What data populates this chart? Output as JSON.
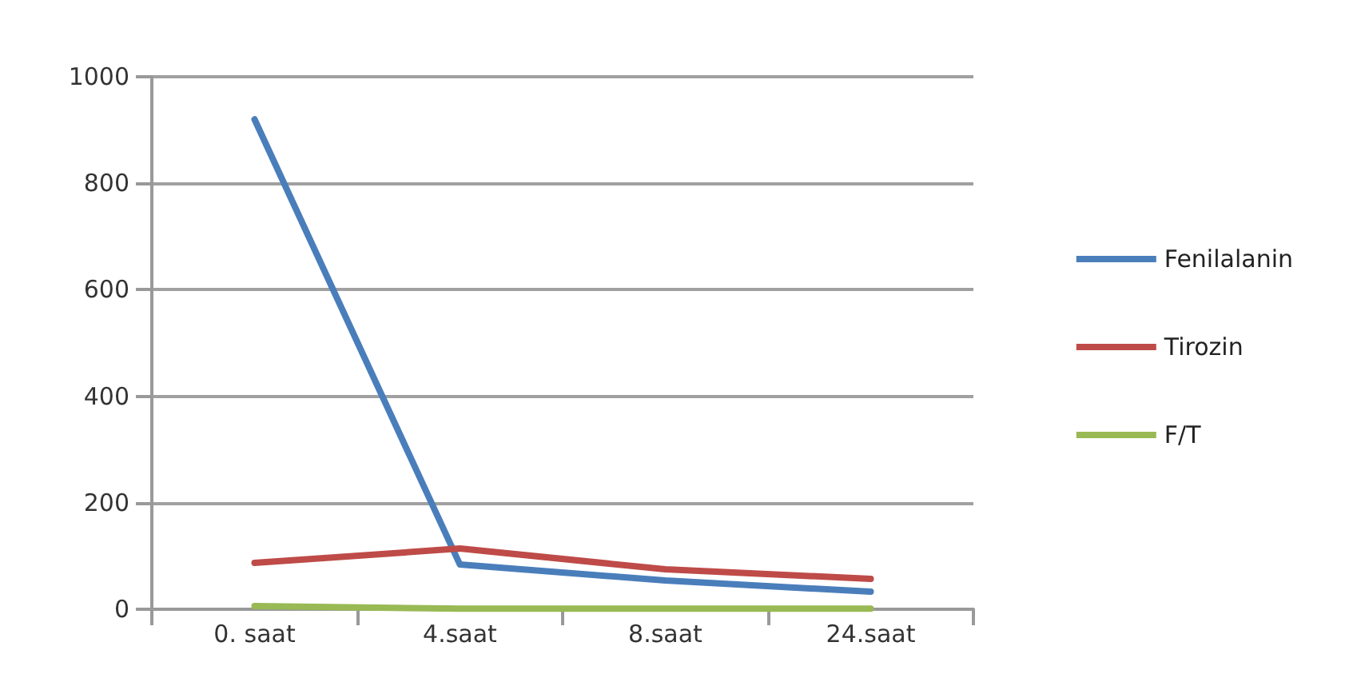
{
  "chart_data": {
    "type": "line",
    "categories": [
      "0. saat",
      "4.saat",
      "8.saat",
      "24.saat"
    ],
    "series": [
      {
        "name": "Fenilalanin",
        "color": "#4a7ebb",
        "values": [
          920,
          84,
          54,
          33
        ]
      },
      {
        "name": "Tirozin",
        "color": "#be4b48",
        "values": [
          87,
          114,
          75,
          57
        ]
      },
      {
        "name": "F/T",
        "color": "#98b954",
        "values": [
          6,
          1,
          1,
          1
        ]
      }
    ],
    "ylim": [
      0,
      1000
    ],
    "yticks": [
      0,
      200,
      400,
      600,
      800,
      1000
    ],
    "grid": "y",
    "legend": "right",
    "marker": "none",
    "line_style": "solid"
  }
}
